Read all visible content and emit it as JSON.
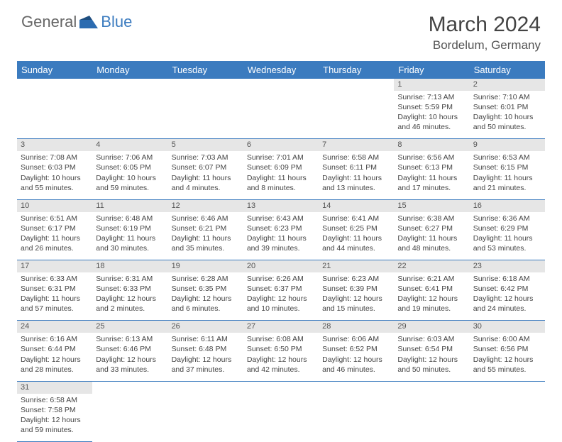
{
  "brand": {
    "part1": "General",
    "part2": "Blue"
  },
  "title": {
    "month": "March 2024",
    "location": "Bordelum, Germany"
  },
  "colors": {
    "header_bg": "#3b7bbf",
    "num_bg": "#e6e6e6",
    "border": "#3b7bbf",
    "text": "#444"
  },
  "columns": [
    "Sunday",
    "Monday",
    "Tuesday",
    "Wednesday",
    "Thursday",
    "Friday",
    "Saturday"
  ],
  "weeks": [
    [
      null,
      null,
      null,
      null,
      null,
      {
        "n": "1",
        "sr": "Sunrise: 7:13 AM",
        "ss": "Sunset: 5:59 PM",
        "dl1": "Daylight: 10 hours",
        "dl2": "and 46 minutes."
      },
      {
        "n": "2",
        "sr": "Sunrise: 7:10 AM",
        "ss": "Sunset: 6:01 PM",
        "dl1": "Daylight: 10 hours",
        "dl2": "and 50 minutes."
      }
    ],
    [
      {
        "n": "3",
        "sr": "Sunrise: 7:08 AM",
        "ss": "Sunset: 6:03 PM",
        "dl1": "Daylight: 10 hours",
        "dl2": "and 55 minutes."
      },
      {
        "n": "4",
        "sr": "Sunrise: 7:06 AM",
        "ss": "Sunset: 6:05 PM",
        "dl1": "Daylight: 10 hours",
        "dl2": "and 59 minutes."
      },
      {
        "n": "5",
        "sr": "Sunrise: 7:03 AM",
        "ss": "Sunset: 6:07 PM",
        "dl1": "Daylight: 11 hours",
        "dl2": "and 4 minutes."
      },
      {
        "n": "6",
        "sr": "Sunrise: 7:01 AM",
        "ss": "Sunset: 6:09 PM",
        "dl1": "Daylight: 11 hours",
        "dl2": "and 8 minutes."
      },
      {
        "n": "7",
        "sr": "Sunrise: 6:58 AM",
        "ss": "Sunset: 6:11 PM",
        "dl1": "Daylight: 11 hours",
        "dl2": "and 13 minutes."
      },
      {
        "n": "8",
        "sr": "Sunrise: 6:56 AM",
        "ss": "Sunset: 6:13 PM",
        "dl1": "Daylight: 11 hours",
        "dl2": "and 17 minutes."
      },
      {
        "n": "9",
        "sr": "Sunrise: 6:53 AM",
        "ss": "Sunset: 6:15 PM",
        "dl1": "Daylight: 11 hours",
        "dl2": "and 21 minutes."
      }
    ],
    [
      {
        "n": "10",
        "sr": "Sunrise: 6:51 AM",
        "ss": "Sunset: 6:17 PM",
        "dl1": "Daylight: 11 hours",
        "dl2": "and 26 minutes."
      },
      {
        "n": "11",
        "sr": "Sunrise: 6:48 AM",
        "ss": "Sunset: 6:19 PM",
        "dl1": "Daylight: 11 hours",
        "dl2": "and 30 minutes."
      },
      {
        "n": "12",
        "sr": "Sunrise: 6:46 AM",
        "ss": "Sunset: 6:21 PM",
        "dl1": "Daylight: 11 hours",
        "dl2": "and 35 minutes."
      },
      {
        "n": "13",
        "sr": "Sunrise: 6:43 AM",
        "ss": "Sunset: 6:23 PM",
        "dl1": "Daylight: 11 hours",
        "dl2": "and 39 minutes."
      },
      {
        "n": "14",
        "sr": "Sunrise: 6:41 AM",
        "ss": "Sunset: 6:25 PM",
        "dl1": "Daylight: 11 hours",
        "dl2": "and 44 minutes."
      },
      {
        "n": "15",
        "sr": "Sunrise: 6:38 AM",
        "ss": "Sunset: 6:27 PM",
        "dl1": "Daylight: 11 hours",
        "dl2": "and 48 minutes."
      },
      {
        "n": "16",
        "sr": "Sunrise: 6:36 AM",
        "ss": "Sunset: 6:29 PM",
        "dl1": "Daylight: 11 hours",
        "dl2": "and 53 minutes."
      }
    ],
    [
      {
        "n": "17",
        "sr": "Sunrise: 6:33 AM",
        "ss": "Sunset: 6:31 PM",
        "dl1": "Daylight: 11 hours",
        "dl2": "and 57 minutes."
      },
      {
        "n": "18",
        "sr": "Sunrise: 6:31 AM",
        "ss": "Sunset: 6:33 PM",
        "dl1": "Daylight: 12 hours",
        "dl2": "and 2 minutes."
      },
      {
        "n": "19",
        "sr": "Sunrise: 6:28 AM",
        "ss": "Sunset: 6:35 PM",
        "dl1": "Daylight: 12 hours",
        "dl2": "and 6 minutes."
      },
      {
        "n": "20",
        "sr": "Sunrise: 6:26 AM",
        "ss": "Sunset: 6:37 PM",
        "dl1": "Daylight: 12 hours",
        "dl2": "and 10 minutes."
      },
      {
        "n": "21",
        "sr": "Sunrise: 6:23 AM",
        "ss": "Sunset: 6:39 PM",
        "dl1": "Daylight: 12 hours",
        "dl2": "and 15 minutes."
      },
      {
        "n": "22",
        "sr": "Sunrise: 6:21 AM",
        "ss": "Sunset: 6:41 PM",
        "dl1": "Daylight: 12 hours",
        "dl2": "and 19 minutes."
      },
      {
        "n": "23",
        "sr": "Sunrise: 6:18 AM",
        "ss": "Sunset: 6:42 PM",
        "dl1": "Daylight: 12 hours",
        "dl2": "and 24 minutes."
      }
    ],
    [
      {
        "n": "24",
        "sr": "Sunrise: 6:16 AM",
        "ss": "Sunset: 6:44 PM",
        "dl1": "Daylight: 12 hours",
        "dl2": "and 28 minutes."
      },
      {
        "n": "25",
        "sr": "Sunrise: 6:13 AM",
        "ss": "Sunset: 6:46 PM",
        "dl1": "Daylight: 12 hours",
        "dl2": "and 33 minutes."
      },
      {
        "n": "26",
        "sr": "Sunrise: 6:11 AM",
        "ss": "Sunset: 6:48 PM",
        "dl1": "Daylight: 12 hours",
        "dl2": "and 37 minutes."
      },
      {
        "n": "27",
        "sr": "Sunrise: 6:08 AM",
        "ss": "Sunset: 6:50 PM",
        "dl1": "Daylight: 12 hours",
        "dl2": "and 42 minutes."
      },
      {
        "n": "28",
        "sr": "Sunrise: 6:06 AM",
        "ss": "Sunset: 6:52 PM",
        "dl1": "Daylight: 12 hours",
        "dl2": "and 46 minutes."
      },
      {
        "n": "29",
        "sr": "Sunrise: 6:03 AM",
        "ss": "Sunset: 6:54 PM",
        "dl1": "Daylight: 12 hours",
        "dl2": "and 50 minutes."
      },
      {
        "n": "30",
        "sr": "Sunrise: 6:00 AM",
        "ss": "Sunset: 6:56 PM",
        "dl1": "Daylight: 12 hours",
        "dl2": "and 55 minutes."
      }
    ],
    [
      {
        "n": "31",
        "sr": "Sunrise: 6:58 AM",
        "ss": "Sunset: 7:58 PM",
        "dl1": "Daylight: 12 hours",
        "dl2": "and 59 minutes."
      },
      null,
      null,
      null,
      null,
      null,
      null
    ]
  ]
}
